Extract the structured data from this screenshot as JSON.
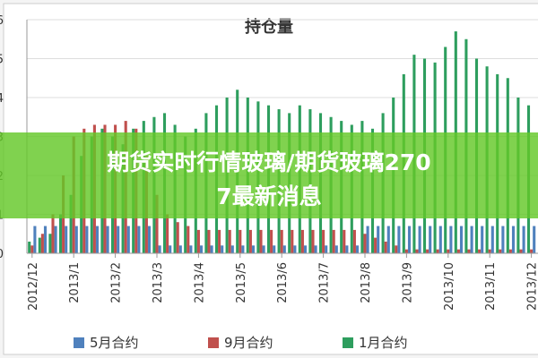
{
  "chart_data": {
    "type": "bar",
    "title": "持仓量",
    "categories": [
      "2012/12",
      null,
      null,
      null,
      "2013/1",
      null,
      null,
      null,
      "2013/2",
      null,
      null,
      null,
      "2013/3",
      null,
      null,
      null,
      "2013/4",
      null,
      null,
      null,
      "2013/5",
      null,
      null,
      null,
      "2013/6",
      null,
      null,
      null,
      "2013/7",
      null,
      null,
      null,
      "2013/8",
      null,
      null,
      null,
      "2013/9",
      null,
      null,
      null,
      "2013/10",
      null,
      null,
      null,
      "2013/11",
      null,
      null,
      null,
      "2013/12"
    ],
    "series": [
      {
        "name": "1月合约",
        "color": "#2e9e5e",
        "values": [
          0.3,
          0.4,
          0.5,
          1.0,
          1.5,
          2.5,
          3.0,
          3.2,
          3.0,
          2.8,
          3.2,
          3.4,
          3.5,
          3.6,
          3.3,
          3.0,
          3.2,
          3.6,
          3.8,
          4.0,
          4.2,
          4.0,
          3.9,
          3.8,
          3.7,
          3.6,
          3.8,
          3.7,
          3.6,
          3.5,
          3.4,
          3.3,
          3.4,
          3.2,
          3.6,
          4.0,
          4.6,
          5.1,
          5.0,
          4.9,
          5.3,
          5.7,
          5.5,
          5.0,
          4.8,
          4.6,
          4.5,
          4.0,
          3.8
        ]
      },
      {
        "name": "9月合约",
        "color": "#c0504d",
        "values": [
          0.2,
          0.5,
          1.0,
          2.0,
          3.0,
          3.2,
          3.3,
          3.3,
          3.3,
          3.4,
          3.2,
          2.5,
          1.5,
          1.0,
          0.8,
          0.7,
          0.6,
          0.6,
          0.6,
          0.6,
          0.6,
          0.6,
          0.6,
          0.6,
          0.6,
          0.6,
          0.6,
          0.6,
          0.6,
          0.6,
          0.6,
          0.6,
          0.5,
          0.4,
          0.3,
          0.2,
          0.1,
          0.1,
          0.1,
          0.1,
          0.1,
          0.1,
          0.1,
          0.1,
          0.1,
          0.1,
          0.1,
          0.1,
          0.1
        ]
      },
      {
        "name": "5月合约",
        "color": "#4f81bd",
        "values": [
          0.7,
          0.7,
          0.7,
          0.7,
          0.7,
          0.7,
          0.7,
          0.7,
          0.7,
          0.7,
          0.7,
          0.7,
          0.2,
          0.2,
          0.2,
          0.2,
          0.2,
          0.2,
          0.2,
          0.2,
          0.2,
          0.2,
          0.2,
          0.2,
          0.2,
          0.2,
          0.2,
          0.2,
          0.2,
          0.2,
          0.2,
          0.2,
          0.7,
          0.7,
          0.7,
          0.7,
          0.7,
          0.7,
          0.7,
          0.7,
          0.7,
          0.7,
          0.7,
          0.7,
          0.7,
          0.7,
          0.7,
          0.7,
          0.7
        ]
      }
    ],
    "ylim": [
      0,
      6
    ],
    "yticks": [
      0,
      1,
      2,
      3,
      4,
      5,
      6
    ],
    "grid": true,
    "legend": "bottom"
  },
  "banner": {
    "lines": [
      "期货实时行情玻璃/期货玻璃270",
      "7最新消息"
    ]
  }
}
